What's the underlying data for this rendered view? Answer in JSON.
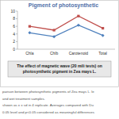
{
  "chart_data": {
    "type": "line",
    "title": "Pigment of photosynthetic",
    "categories": [
      "Chla",
      "Chlb",
      "Carotenoid",
      "Total"
    ],
    "series": [
      {
        "color": "#c0504d",
        "marker": "square",
        "values": [
          6.0,
          5.0,
          8.7,
          5.5
        ]
      },
      {
        "color": "#4f81bd",
        "marker": "diamond",
        "values": [
          4.3,
          3.3,
          6.3,
          3.6
        ]
      }
    ],
    "ylim": [
      0,
      10
    ],
    "yticks": [
      0,
      2,
      4,
      6,
      8,
      10
    ],
    "grid": false,
    "annotations": [
      "The effect of magnetic wave (20 mili tests) on",
      "photosynthetic pigment in Zea mays L."
    ],
    "caption": [
      "parison between photosynthetic pigments of Zea mays L. le",
      "and wet treatment samples.",
      "shown as x ± sd in 4 replicate. Averages compared with Du",
      "0.05 level and p<0.05 considered as meaningful differences"
    ]
  }
}
